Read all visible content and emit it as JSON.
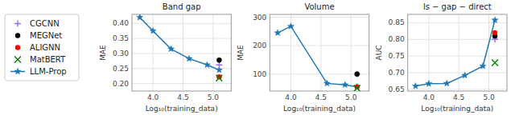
{
  "chart_data": [
    {
      "type": "line",
      "title": "Band gap",
      "xlabel": "Log₁₀(training_data)",
      "ylabel": "MAE",
      "series": [
        {
          "name": "CGCNN",
          "type": "scatter",
          "marker": "plus",
          "color": "#9370DB",
          "x": [
            5.1
          ],
          "values": [
            0.262
          ]
        },
        {
          "name": "MEGNet",
          "type": "scatter",
          "marker": "circle",
          "color": "black",
          "x": [
            5.1
          ],
          "values": [
            0.278
          ]
        },
        {
          "name": "ALIGNN",
          "type": "scatter",
          "marker": "circle",
          "color": "red",
          "x": [
            5.1
          ],
          "values": [
            0.222
          ]
        },
        {
          "name": "MatBERT",
          "type": "scatter",
          "marker": "cross",
          "color": "green",
          "x": [
            5.1
          ],
          "values": [
            0.218
          ]
        },
        {
          "name": "LLM-Prop",
          "type": "line",
          "marker": "star",
          "line_style": "solid",
          "color": "#1f77b4",
          "x": [
            3.78,
            4.0,
            4.3,
            4.6,
            4.9,
            5.1
          ],
          "values": [
            0.42,
            0.375,
            0.315,
            0.283,
            0.262,
            0.245
          ]
        }
      ],
      "xlim": [
        3.65,
        5.3
      ],
      "xticks": [
        {
          "value": 4,
          "label": "4.0"
        },
        4.5,
        {
          "value": 5,
          "label": "5.0"
        }
      ],
      "ylim": [
        0.175,
        0.43
      ],
      "yticks": [
        {
          "value": 0.2,
          "label": "0.20"
        },
        0.25,
        {
          "value": 0.3,
          "label": "0.30"
        },
        0.35,
        {
          "value": 0.4,
          "label": "0.40"
        }
      ],
      "grid": true,
      "legend": "upper left"
    },
    {
      "type": "line",
      "title": "Volume",
      "xlabel": "Log₁₀(training_data)",
      "ylabel": "MAE",
      "series": [
        {
          "name": "CGCNN",
          "type": "scatter",
          "marker": "plus",
          "color": "#9370DB",
          "x": [
            5.1
          ],
          "values": [
            100
          ]
        },
        {
          "name": "MEGNet",
          "type": "scatter",
          "marker": "circle",
          "color": "black",
          "x": [
            5.1
          ],
          "values": [
            100
          ]
        },
        {
          "name": "ALIGNN",
          "type": "scatter",
          "marker": "circle",
          "color": "red",
          "x": [
            5.1
          ],
          "values": [
            55
          ]
        },
        {
          "name": "MatBERT",
          "type": "scatter",
          "marker": "cross",
          "color": "green",
          "x": [
            5.1
          ],
          "values": [
            50
          ]
        },
        {
          "name": "LLM-Prop",
          "type": "line",
          "marker": "star",
          "line_style": "solid",
          "color": "#1f77b4",
          "x": [
            3.78,
            4.0,
            4.6,
            4.9,
            5.1
          ],
          "values": [
            245,
            268,
            67,
            62,
            55
          ]
        }
      ],
      "xlim": [
        3.65,
        5.3
      ],
      "xticks": [
        {
          "value": 4,
          "label": "4.0"
        },
        4.5,
        {
          "value": 5,
          "label": "5.0"
        }
      ],
      "ylim": [
        40,
        310
      ],
      "yticks": [
        100,
        200,
        300
      ],
      "grid": true
    },
    {
      "type": "line",
      "title": "ls − gap − direct",
      "xlabel": "Log₁₀(training_data)",
      "ylabel": "AUC",
      "series": [
        {
          "name": "CGCNN",
          "type": "scatter",
          "marker": "plus",
          "color": "#9370DB",
          "x": [
            5.1
          ],
          "values": [
            0.8
          ]
        },
        {
          "name": "MEGNet",
          "type": "scatter",
          "marker": "circle",
          "color": "black",
          "x": [
            5.1
          ],
          "values": [
            0.81
          ]
        },
        {
          "name": "ALIGNN",
          "type": "scatter",
          "marker": "circle",
          "color": "red",
          "x": [
            5.1
          ],
          "values": [
            0.82
          ]
        },
        {
          "name": "MatBERT",
          "type": "scatter",
          "marker": "cross",
          "color": "green",
          "x": [
            5.1
          ],
          "values": [
            0.73
          ]
        },
        {
          "name": "LLM-Prop",
          "type": "line",
          "marker": "star",
          "line_style": "solid",
          "color": "#1f77b4",
          "x": [
            3.78,
            4.0,
            4.3,
            4.6,
            4.9,
            5.1
          ],
          "values": [
            0.66,
            0.667,
            0.668,
            0.692,
            0.72,
            0.858
          ]
        }
      ],
      "xlim": [
        3.65,
        5.3
      ],
      "xticks": [
        {
          "value": 4,
          "label": "4.0"
        },
        4.5,
        {
          "value": 5,
          "label": "5.0"
        }
      ],
      "ylim": [
        0.645,
        0.875
      ],
      "yticks": [
        0.65,
        {
          "value": 0.7,
          "label": "0.70"
        },
        0.75,
        {
          "value": 0.8,
          "label": "0.80"
        },
        0.85
      ],
      "grid": true
    }
  ]
}
